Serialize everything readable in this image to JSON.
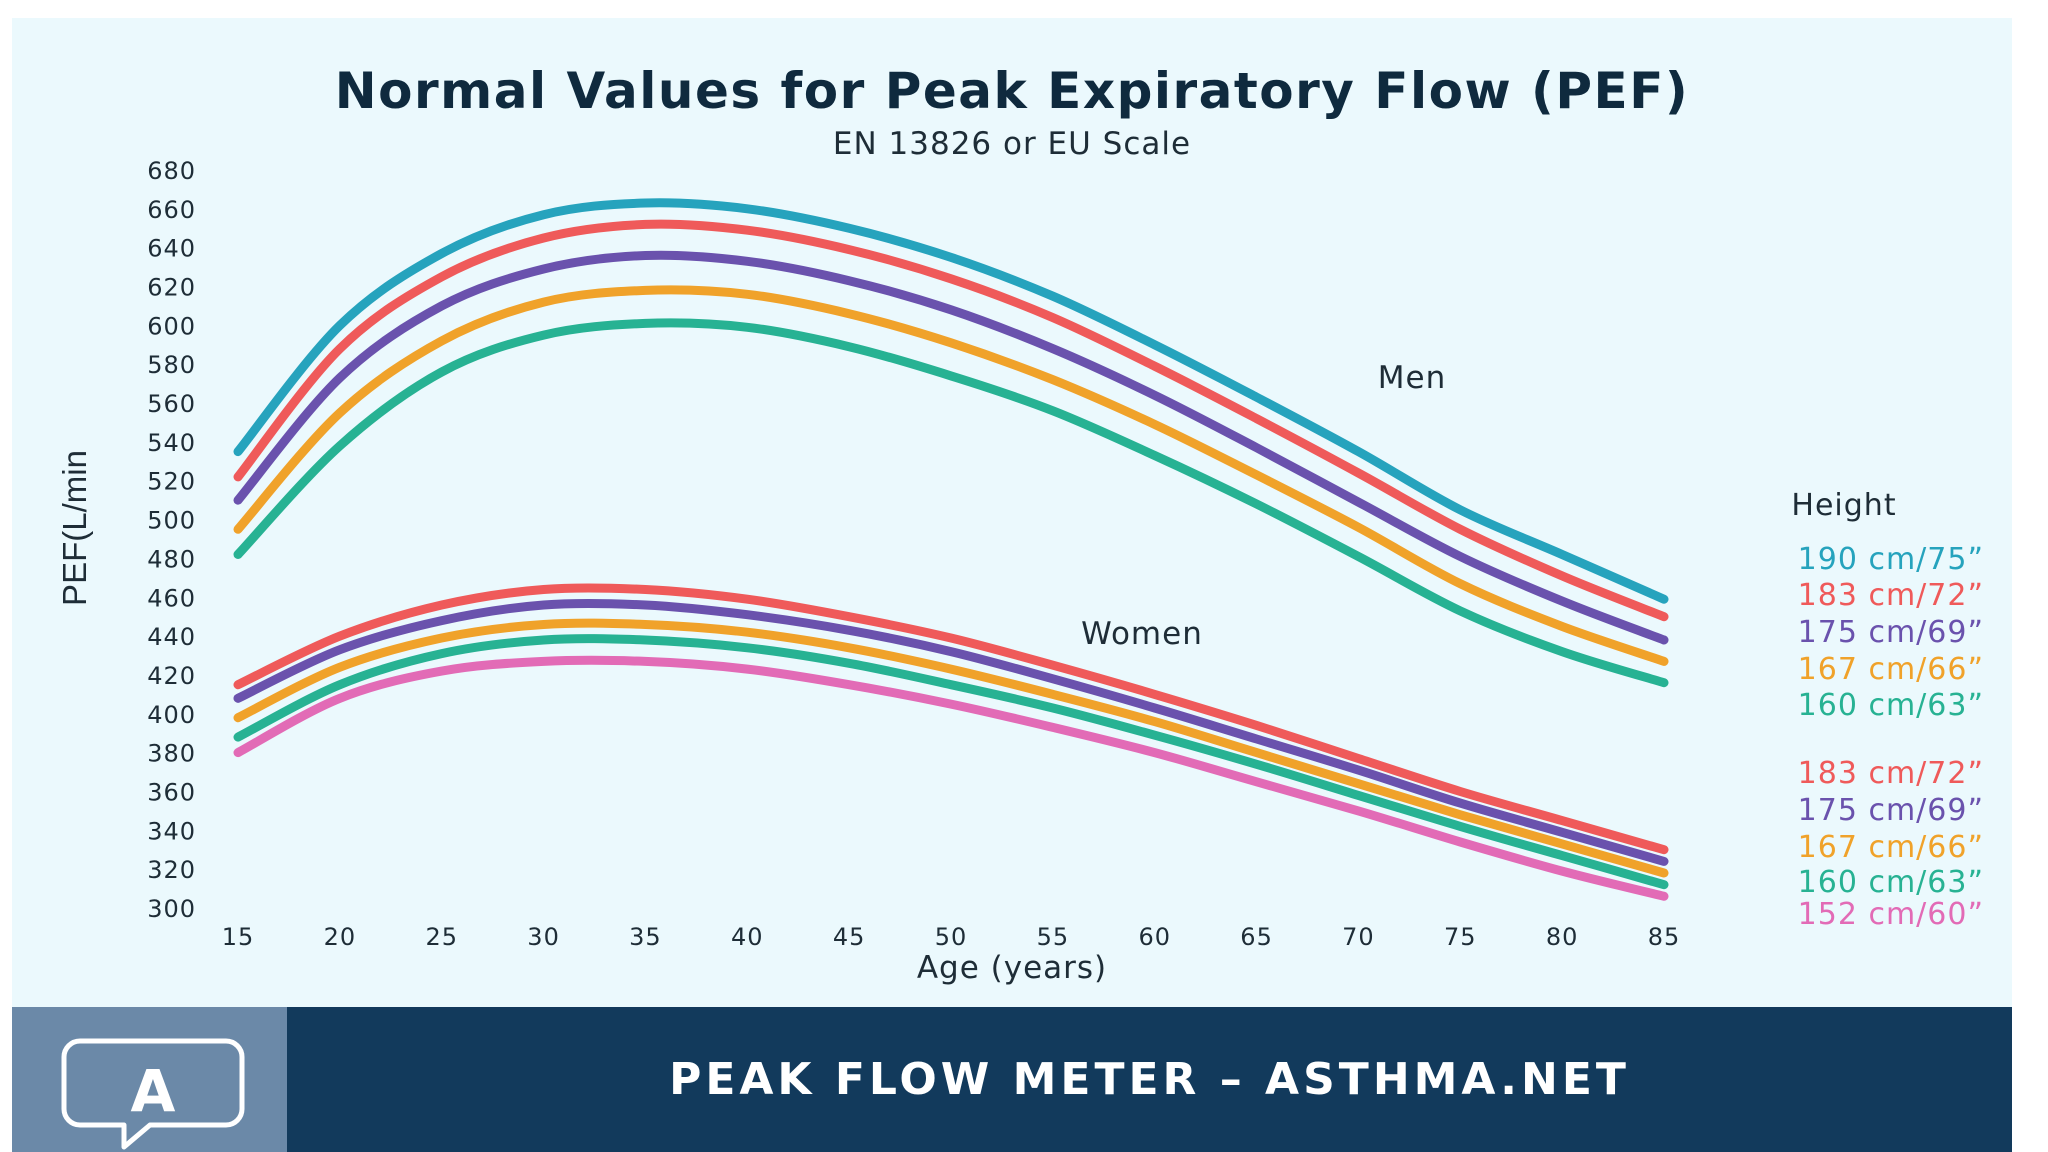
{
  "chart_data": {
    "type": "line",
    "title": "Normal Values for Peak Expiratory Flow (PEF)",
    "subtitle": "EN 13826 or EU Scale",
    "xlabel": "Age (years)",
    "ylabel": "PEF(L/min",
    "xlim": [
      15,
      85
    ],
    "ylim": [
      300,
      680
    ],
    "x_ticks": [
      15,
      20,
      25,
      30,
      35,
      40,
      45,
      50,
      55,
      60,
      65,
      70,
      75,
      80,
      85
    ],
    "y_ticks": [
      300,
      320,
      340,
      360,
      380,
      400,
      420,
      440,
      460,
      480,
      500,
      520,
      540,
      560,
      580,
      600,
      620,
      640,
      660,
      680
    ],
    "grid": false,
    "legend_title": "Height",
    "legend_position": "right",
    "x": [
      15,
      20,
      25,
      30,
      35,
      40,
      45,
      50,
      55,
      60,
      65,
      70,
      75,
      80,
      85
    ],
    "groups": [
      {
        "label": "Men",
        "series": [
          {
            "name": "190 cm/75”",
            "color": "#26a3bd",
            "values": [
              535,
              600,
              637,
              657,
              663,
              660,
              650,
              635,
              615,
              590,
              563,
              535,
              505,
              482,
              459
            ]
          },
          {
            "name": "183 cm/72”",
            "color": "#ef5a5a",
            "values": [
              522,
              588,
              625,
              645,
              652,
              649,
              639,
              624,
              604,
              579,
              552,
              524,
              495,
              471,
              450
            ]
          },
          {
            "name": "175 cm/69”",
            "color": "#6a52ad",
            "values": [
              510,
              573,
              610,
              629,
              636,
              633,
              623,
              608,
              588,
              564,
              537,
              509,
              481,
              458,
              438
            ]
          },
          {
            "name": "167 cm/66”",
            "color": "#f0a22a",
            "values": [
              495,
              555,
              592,
              612,
              618,
              616,
              606,
              591,
              572,
              549,
              523,
              496,
              467,
              445,
              427
            ]
          },
          {
            "name": "160 cm/63”",
            "color": "#27b293",
            "values": [
              482,
              538,
              576,
              595,
              601,
              599,
              589,
              574,
              556,
              533,
              508,
              481,
              453,
              432,
              416
            ]
          }
        ]
      },
      {
        "label": "Women",
        "series": [
          {
            "name": "183 cm/72”",
            "color": "#ef5a5a",
            "values": [
              415,
              440,
              456,
              464,
              464,
              459,
              450,
              439,
              425,
              410,
              394,
              377,
              360,
              345,
              330
            ]
          },
          {
            "name": "175 cm/69”",
            "color": "#6a52ad",
            "values": [
              408,
              433,
              448,
              456,
              456,
              451,
              443,
              432,
              418,
              403,
              387,
              371,
              354,
              339,
              324
            ]
          },
          {
            "name": "167 cm/66”",
            "color": "#f0a22a",
            "values": [
              398,
              424,
              439,
              446,
              446,
              442,
              434,
              423,
              410,
              396,
              380,
              364,
              348,
              333,
              318
            ]
          },
          {
            "name": "160 cm/63”",
            "color": "#27b293",
            "values": [
              388,
              415,
              431,
              438,
              438,
              434,
              426,
              415,
              403,
              389,
              374,
              358,
              342,
              327,
              312
            ]
          },
          {
            "name": "152 cm/60”",
            "color": "#e26bb6",
            "values": [
              380,
              408,
              422,
              427,
              427,
              423,
              415,
              405,
              393,
              380,
              365,
              350,
              334,
              319,
              306
            ]
          }
        ]
      }
    ]
  },
  "footer": {
    "brand": "PEAK FLOW METER – ASTHMA.NET",
    "logo_letter": "A",
    "logo_icon": "speech-bubble-logo-icon"
  },
  "colors": {
    "background": "#ebf9fd",
    "footer_dark": "#123a5c",
    "footer_light": "#6b89a8",
    "title": "#0f2a3e"
  }
}
